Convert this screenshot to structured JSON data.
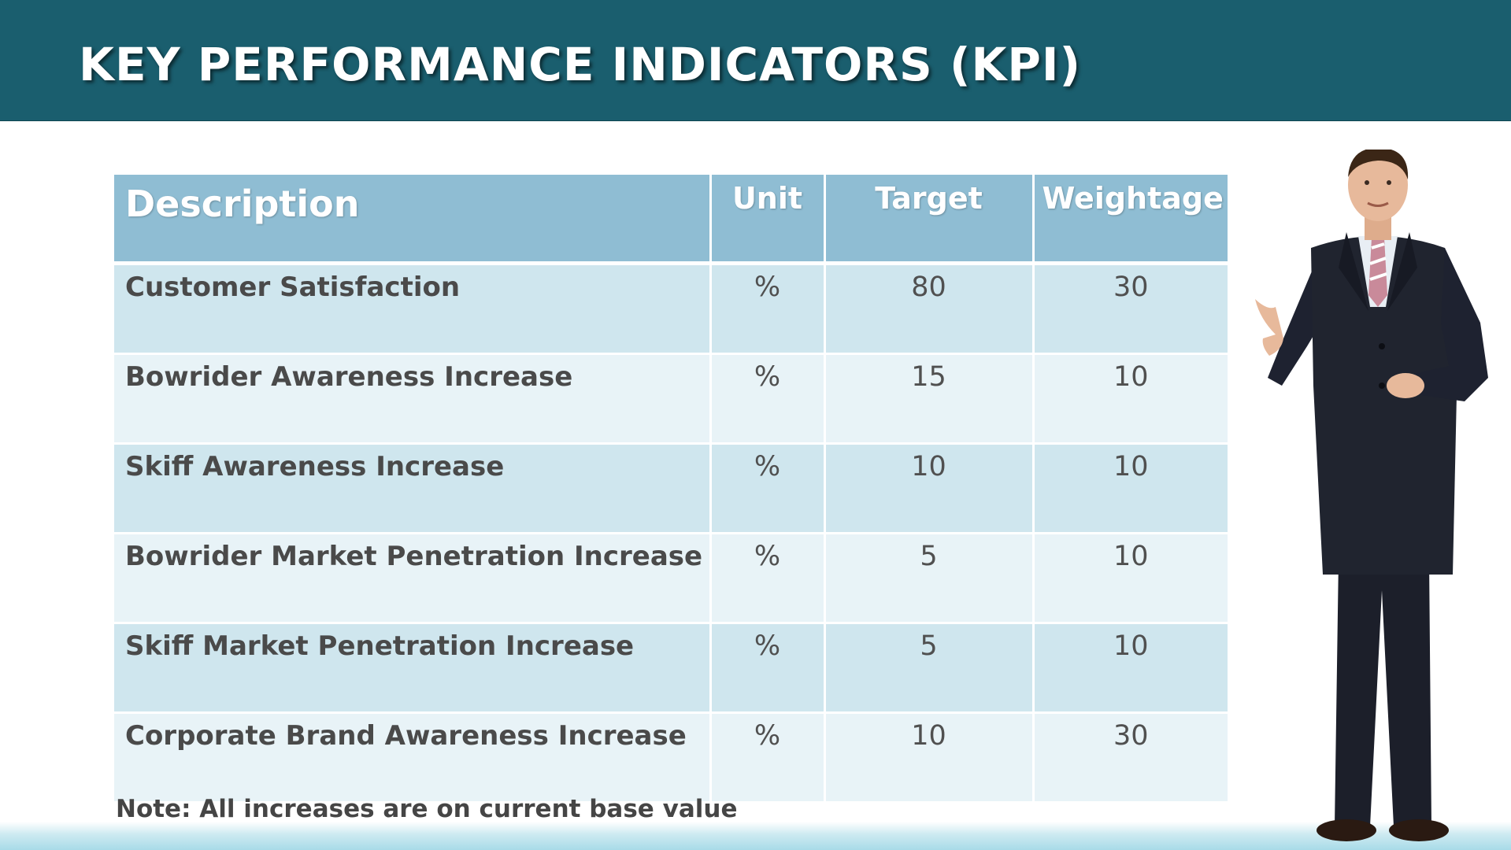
{
  "slide": {
    "title": "KEY PERFORMANCE INDICATORS (KPI)",
    "note": "Note: All increases are on current base value"
  },
  "table": {
    "headers": [
      "Description",
      "Unit",
      "Target",
      "Weightage"
    ],
    "rows": [
      {
        "description": "Customer Satisfaction",
        "unit": "%",
        "target": "80",
        "weightage": "30"
      },
      {
        "description": "Bowrider Awareness Increase",
        "unit": "%",
        "target": "15",
        "weightage": "10"
      },
      {
        "description": "Skiff Awareness Increase",
        "unit": "%",
        "target": "10",
        "weightage": "10"
      },
      {
        "description": "Bowrider Market Penetration Increase",
        "unit": "%",
        "target": "5",
        "weightage": "10"
      },
      {
        "description": "Skiff Market Penetration Increase",
        "unit": "%",
        "target": "5",
        "weightage": "10"
      },
      {
        "description": "Corporate Brand Awareness Increase",
        "unit": "%",
        "target": "10",
        "weightage": "30"
      }
    ]
  },
  "colors": {
    "header_bar": "#1a5e6e",
    "table_header": "#8fbdd3",
    "row_odd": "#cfe6ee",
    "row_even": "#e8f3f7"
  },
  "image": {
    "icon": "presenter-man-icon"
  }
}
